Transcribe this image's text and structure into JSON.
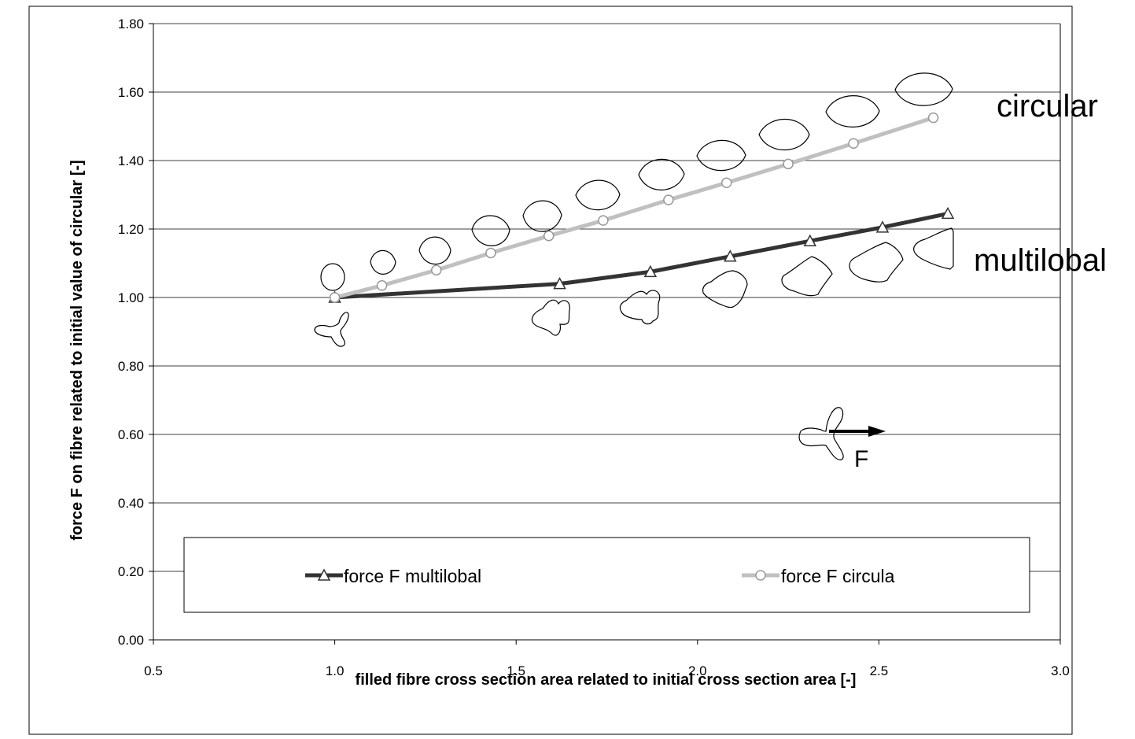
{
  "chart_data": {
    "type": "line",
    "title": "",
    "xlabel": "filled fibre cross section area related to initial cross section area [-]",
    "ylabel": "force F on fibre related to initial value of circular [-]",
    "xlim": [
      0.5,
      3.0
    ],
    "ylim": [
      0.0,
      1.8
    ],
    "x_ticks": [
      "0.5",
      "1.0",
      "1.5",
      "2.0",
      "2.5",
      "3.0"
    ],
    "y_ticks": [
      "0.00",
      "0.20",
      "0.40",
      "0.60",
      "0.80",
      "1.00",
      "1.20",
      "1.40",
      "1.60",
      "1.80"
    ],
    "grid": "horizontal",
    "legend_position": "bottom, inside plot area",
    "series": [
      {
        "name": "force F multilobal",
        "color": "#333333",
        "marker": "triangle",
        "x": [
          1.0,
          1.62,
          1.87,
          2.09,
          2.31,
          2.51,
          2.69
        ],
        "y": [
          1.0,
          1.04,
          1.075,
          1.12,
          1.165,
          1.205,
          1.245
        ]
      },
      {
        "name": "force F circula",
        "color": "#c0c0c0",
        "marker": "circle",
        "x": [
          1.0,
          1.13,
          1.28,
          1.43,
          1.59,
          1.74,
          1.92,
          2.08,
          2.25,
          2.43,
          2.65
        ],
        "y": [
          1.0,
          1.035,
          1.08,
          1.13,
          1.18,
          1.225,
          1.285,
          1.335,
          1.39,
          1.45,
          1.525
        ]
      }
    ],
    "annotations": {
      "circular_label": "circular",
      "multilobal_label": "multilobal",
      "force_label": "F"
    }
  }
}
